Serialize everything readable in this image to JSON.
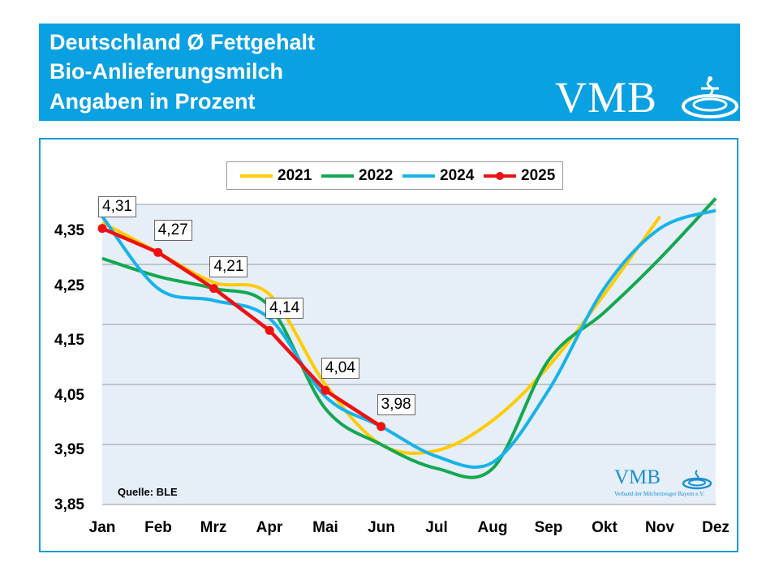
{
  "header": {
    "title_line1": "Deutschland Ø Fettgehalt",
    "title_line2": "Bio-Anlieferungsmilch",
    "title_line3": "Angaben in Prozent",
    "logo": "VMB"
  },
  "watermark": {
    "logo": "VMB",
    "tagline": "Verband der Milcherzeuger Bayern e.V."
  },
  "source": "Quelle: BLE",
  "chart_data": {
    "type": "line",
    "title": "",
    "xlabel": "",
    "ylabel": "",
    "categories": [
      "Jan",
      "Feb",
      "Mrz",
      "Apr",
      "Mai",
      "Jun",
      "Jul",
      "Aug",
      "Sep",
      "Okt",
      "Nov",
      "Dez"
    ],
    "yticks": [
      "3,85",
      "3,95",
      "4,05",
      "4,15",
      "4,25",
      "4,35"
    ],
    "ylim": [
      3.85,
      4.35
    ],
    "grid": true,
    "legend_position": "top-center",
    "series": [
      {
        "name": "2021",
        "color": "#ffcc00",
        "markers": false,
        "values": [
          4.32,
          4.27,
          4.22,
          4.2,
          4.05,
          3.95,
          3.94,
          3.99,
          4.08,
          4.2,
          4.33,
          null
        ]
      },
      {
        "name": "2022",
        "color": "#13a850",
        "markers": false,
        "values": [
          4.26,
          4.23,
          4.21,
          4.18,
          4.01,
          3.95,
          3.91,
          3.91,
          4.09,
          4.17,
          4.26,
          4.36
        ]
      },
      {
        "name": "2024",
        "color": "#17b2ea",
        "markers": false,
        "values": [
          4.33,
          4.21,
          4.19,
          4.16,
          4.03,
          3.98,
          3.93,
          3.92,
          4.04,
          4.21,
          4.31,
          4.34
        ]
      },
      {
        "name": "2025",
        "color": "#ee1111",
        "markers": true,
        "values": [
          4.31,
          4.27,
          4.21,
          4.14,
          4.04,
          3.98,
          null,
          null,
          null,
          null,
          null,
          null
        ],
        "labels": [
          "4,31",
          "4,27",
          "4,21",
          "4,14",
          "4,04",
          "3,98"
        ]
      }
    ]
  }
}
